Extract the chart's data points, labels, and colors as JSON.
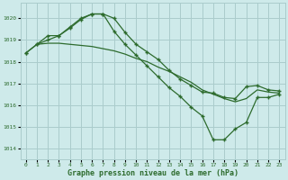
{
  "title": "Graphe pression niveau de la mer (hPa)",
  "bg_color": "#ceeaea",
  "grid_color": "#aacccc",
  "line_color": "#2d6b2d",
  "xlim": [
    -0.5,
    23.5
  ],
  "ylim": [
    1013.5,
    1020.7
  ],
  "yticks": [
    1014,
    1015,
    1016,
    1017,
    1018,
    1019,
    1020
  ],
  "xticks": [
    0,
    1,
    2,
    3,
    4,
    5,
    6,
    7,
    8,
    9,
    10,
    11,
    12,
    13,
    14,
    15,
    16,
    17,
    18,
    19,
    20,
    21,
    22,
    23
  ],
  "line1_x": [
    0,
    1,
    2,
    3,
    4,
    5,
    6,
    7,
    8,
    9,
    10,
    11,
    12,
    13,
    14,
    15,
    16,
    17,
    18,
    19,
    20,
    21,
    22,
    23
  ],
  "line1_y": [
    1018.4,
    1018.8,
    1019.0,
    1019.2,
    1019.55,
    1019.95,
    1020.2,
    1020.2,
    1020.0,
    1019.35,
    1018.8,
    1018.45,
    1018.1,
    1017.6,
    1017.2,
    1016.9,
    1016.6,
    1016.55,
    1016.35,
    1016.3,
    1016.85,
    1016.9,
    1016.7,
    1016.65
  ],
  "line2_x": [
    0,
    1,
    2,
    3,
    4,
    5,
    6,
    7,
    8,
    9,
    10,
    11,
    12,
    13,
    14,
    15,
    16,
    17,
    18,
    19,
    20,
    21,
    22,
    23
  ],
  "line2_y": [
    1018.4,
    1018.8,
    1019.2,
    1019.2,
    1019.6,
    1020.0,
    1020.2,
    1020.2,
    1019.4,
    1018.8,
    1018.3,
    1017.8,
    1017.3,
    1016.8,
    1016.4,
    1015.9,
    1015.5,
    1014.4,
    1014.4,
    1014.9,
    1015.2,
    1016.35,
    1016.35,
    1016.5
  ],
  "line3_x": [
    1,
    2,
    3,
    4,
    5,
    6,
    7,
    8,
    9,
    10,
    11,
    12,
    13,
    14,
    15,
    16,
    17,
    18,
    19,
    20,
    21,
    22,
    23
  ],
  "line3_y": [
    1018.8,
    1018.85,
    1018.85,
    1018.8,
    1018.75,
    1018.7,
    1018.6,
    1018.5,
    1018.35,
    1018.15,
    1018.0,
    1017.75,
    1017.55,
    1017.3,
    1017.05,
    1016.7,
    1016.5,
    1016.3,
    1016.15,
    1016.3,
    1016.7,
    1016.6,
    1016.55
  ]
}
